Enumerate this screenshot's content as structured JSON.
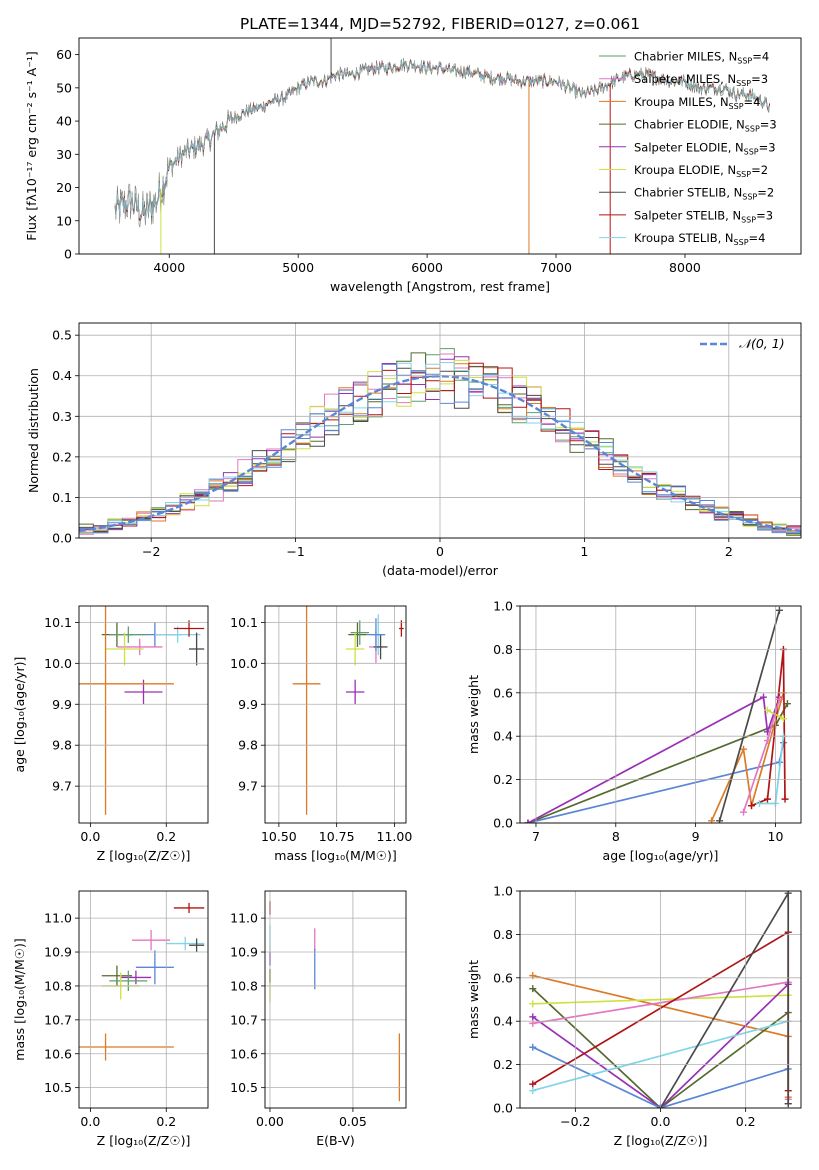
{
  "title": "PLATE=1344, MJD=52792, FIBERID=0127, z=0.061",
  "colors": {
    "chabrier_miles": "#5f9e6e",
    "salpeter_miles": "#e377c2",
    "kroupa_miles": "#dd7a25",
    "chabrier_elodie": "#556b2f",
    "salpeter_elodie": "#9a30b5",
    "kroupa_elodie": "#d0e040",
    "chabrier_stelib": "#4a4a4a",
    "salpeter_stelib": "#b01515",
    "kroupa_stelib": "#7fd6e6",
    "blue_series": "#5b86d6",
    "grid": "#b0b0b0"
  },
  "chart_data": [
    {
      "id": "spectrum",
      "type": "line",
      "xlabel": "wavelength [Angstrom, rest frame]",
      "ylabel": "Flux [f$_\\lambda$10$^{-17}$ erg cm$^{-2}$ s$^{-1}$ A$^{-1}$]",
      "ylabel_display": "Flux [fλ10⁻¹⁷ erg cm⁻² s⁻¹ A⁻¹]",
      "xlim": [
        3300,
        8900
      ],
      "ylim": [
        0,
        65
      ],
      "xticks": [
        4000,
        5000,
        6000,
        7000,
        8000
      ],
      "yticks": [
        0,
        10,
        20,
        30,
        40,
        50,
        60
      ],
      "grid": false,
      "legend_position": "top-right",
      "legend": [
        {
          "label": "Chabrier MILES, N",
          "sub": "SSP",
          "suffix": "=4",
          "color_key": "chabrier_miles"
        },
        {
          "label": "Salpeter MILES, N",
          "sub": "SSP",
          "suffix": "=3",
          "color_key": "salpeter_miles"
        },
        {
          "label": "Kroupa MILES, N",
          "sub": "SSP",
          "suffix": "=4",
          "color_key": "kroupa_miles"
        },
        {
          "label": "Chabrier ELODIE, N",
          "sub": "SSP",
          "suffix": "=3",
          "color_key": "chabrier_elodie"
        },
        {
          "label": "Salpeter ELODIE, N",
          "sub": "SSP",
          "suffix": "=3",
          "color_key": "salpeter_elodie"
        },
        {
          "label": "Kroupa ELODIE, N",
          "sub": "SSP",
          "suffix": "=2",
          "color_key": "kroupa_elodie"
        },
        {
          "label": "Chabrier STELIB, N",
          "sub": "SSP",
          "suffix": "=2",
          "color_key": "chabrier_stelib"
        },
        {
          "label": "Salpeter STELIB, N",
          "sub": "SSP",
          "suffix": "=3",
          "color_key": "salpeter_stelib"
        },
        {
          "label": "Kroupa STELIB, N",
          "sub": "SSP",
          "suffix": "=4",
          "color_key": "kroupa_stelib"
        }
      ],
      "continuum": [
        [
          3580,
          13
        ],
        [
          3700,
          16
        ],
        [
          3800,
          12
        ],
        [
          3900,
          16
        ],
        [
          3960,
          22
        ],
        [
          4000,
          26
        ],
        [
          4100,
          30
        ],
        [
          4200,
          32
        ],
        [
          4300,
          34
        ],
        [
          4400,
          38
        ],
        [
          4500,
          41
        ],
        [
          4600,
          43
        ],
        [
          4700,
          44
        ],
        [
          4800,
          46
        ],
        [
          4900,
          47
        ],
        [
          5000,
          50
        ],
        [
          5100,
          52
        ],
        [
          5200,
          52
        ],
        [
          5300,
          54
        ],
        [
          5400,
          54
        ],
        [
          5500,
          55
        ],
        [
          5600,
          56
        ],
        [
          5700,
          56
        ],
        [
          5800,
          57
        ],
        [
          5900,
          57
        ],
        [
          6000,
          56
        ],
        [
          6100,
          56
        ],
        [
          6200,
          55
        ],
        [
          6300,
          55
        ],
        [
          6400,
          54
        ],
        [
          6500,
          53
        ],
        [
          6600,
          53
        ],
        [
          6700,
          52
        ],
        [
          6800,
          52
        ],
        [
          6900,
          52
        ],
        [
          7000,
          52
        ],
        [
          7100,
          50
        ],
        [
          7200,
          48
        ],
        [
          7300,
          49
        ],
        [
          7400,
          51
        ],
        [
          7500,
          53
        ],
        [
          7600,
          54
        ],
        [
          7700,
          54
        ],
        [
          7800,
          53
        ],
        [
          7900,
          52
        ],
        [
          8000,
          52
        ],
        [
          8100,
          50
        ],
        [
          8200,
          50
        ],
        [
          8300,
          50
        ],
        [
          8400,
          48
        ],
        [
          8500,
          48
        ],
        [
          8600,
          46
        ],
        [
          8660,
          44
        ]
      ],
      "spikes": [
        {
          "x": 3935,
          "y": 0,
          "color_key": "kroupa_elodie"
        },
        {
          "x": 4350,
          "y": 0,
          "color_key": "chabrier_stelib"
        },
        {
          "x": 5255,
          "y": 65,
          "color_key": "chabrier_stelib"
        },
        {
          "x": 6790,
          "y": 0,
          "color_key": "kroupa_miles"
        },
        {
          "x": 7420,
          "y": 0,
          "color_key": "salpeter_stelib"
        }
      ]
    },
    {
      "id": "residuals",
      "type": "histogram",
      "xlabel": "(data-model)/error",
      "ylabel": "Normed distribution",
      "xlim": [
        -2.5,
        2.5
      ],
      "ylim": [
        0,
        0.53
      ],
      "xticks": [
        -2,
        -1,
        0,
        1,
        2
      ],
      "xtick_labels": [
        "−2",
        "−1",
        "0",
        "1",
        "2"
      ],
      "yticks": [
        0.0,
        0.1,
        0.2,
        0.3,
        0.4,
        0.5
      ],
      "grid": true,
      "legend_position": "top-right",
      "legend_label": "𝒩(0, 1)",
      "bin_width": 0.1,
      "reference_curve": "gaussian mean 0 sigma 1"
    },
    {
      "id": "age_vs_Z",
      "type": "scatter",
      "xlabel": "Z [log₁₀(Z/Z☉)]",
      "ylabel": "age  [log₁₀(age/yr)]",
      "xlim": [
        -0.03,
        0.31
      ],
      "ylim": [
        9.61,
        10.14
      ],
      "xticks": [
        0.0,
        0.2
      ],
      "yticks": [
        9.7,
        9.8,
        9.9,
        10.0,
        10.1
      ],
      "grid": true,
      "points": [
        {
          "x": 0.17,
          "y": 10.07,
          "xerr": 0.07,
          "yerr": 0.03,
          "color_key": "blue_series"
        },
        {
          "x": 0.07,
          "y": 10.07,
          "xerr": 0.04,
          "yerr": 0.03,
          "color_key": "chabrier_elodie"
        },
        {
          "x": 0.1,
          "y": 10.07,
          "xerr": 0.05,
          "yerr": 0.02,
          "color_key": "chabrier_miles"
        },
        {
          "x": 0.13,
          "y": 10.04,
          "xerr": 0.06,
          "yerr": 0.02,
          "color_key": "salpeter_miles"
        },
        {
          "x": 0.09,
          "y": 10.035,
          "xerr": 0.05,
          "yerr": 0.04,
          "color_key": "kroupa_elodie"
        },
        {
          "x": 0.23,
          "y": 10.07,
          "xerr": 0.06,
          "yerr": 0.02,
          "color_key": "kroupa_stelib"
        },
        {
          "x": 0.26,
          "y": 10.085,
          "xerr": 0.04,
          "yerr": 0.02,
          "color_key": "salpeter_stelib"
        },
        {
          "x": 0.28,
          "y": 10.035,
          "xerr": 0.02,
          "yerr": 0.04,
          "color_key": "chabrier_stelib"
        },
        {
          "x": 0.14,
          "y": 9.93,
          "xerr": 0.05,
          "yerr": 0.03,
          "color_key": "salpeter_elodie"
        },
        {
          "x": 0.04,
          "y": 9.95,
          "xerr": 0.18,
          "yerr": 0.32,
          "color_key": "kroupa_miles"
        }
      ]
    },
    {
      "id": "age_vs_mass",
      "type": "scatter",
      "xlabel": "mass [log₁₀(M/M☉)]",
      "ylabel": "",
      "xlim": [
        10.44,
        11.05
      ],
      "ylim": [
        9.61,
        10.14
      ],
      "xticks": [
        10.5,
        10.75,
        11.0
      ],
      "yticks": [
        9.7,
        9.8,
        9.9,
        10.0,
        10.1
      ],
      "grid": true,
      "points": [
        {
          "x": 10.93,
          "y": 10.07,
          "xerr": 0.03,
          "yerr": 0.05,
          "color_key": "kroupa_stelib"
        },
        {
          "x": 10.84,
          "y": 10.07,
          "xerr": 0.04,
          "yerr": 0.03,
          "color_key": "chabrier_elodie"
        },
        {
          "x": 10.85,
          "y": 10.075,
          "xerr": 0.04,
          "yerr": 0.03,
          "color_key": "chabrier_miles"
        },
        {
          "x": 10.92,
          "y": 10.04,
          "xerr": 0.03,
          "yerr": 0.04,
          "color_key": "salpeter_miles"
        },
        {
          "x": 10.83,
          "y": 10.035,
          "xerr": 0.04,
          "yerr": 0.04,
          "color_key": "kroupa_elodie"
        },
        {
          "x": 10.94,
          "y": 10.04,
          "xerr": 0.03,
          "yerr": 0.03,
          "color_key": "chabrier_stelib"
        },
        {
          "x": 11.03,
          "y": 10.085,
          "xerr": 0.01,
          "yerr": 0.02,
          "color_key": "salpeter_stelib"
        },
        {
          "x": 10.83,
          "y": 9.93,
          "xerr": 0.04,
          "yerr": 0.03,
          "color_key": "salpeter_elodie"
        },
        {
          "x": 10.92,
          "y": 10.07,
          "xerr": 0.04,
          "yerr": 0.04,
          "color_key": "blue_series"
        },
        {
          "x": 10.62,
          "y": 9.95,
          "xerr": 0.06,
          "yerr": 0.32,
          "color_key": "kroupa_miles"
        }
      ]
    },
    {
      "id": "massweight_vs_age",
      "type": "line",
      "xlabel": "age  [log₁₀(age/yr)]",
      "ylabel": "mass weight",
      "xlim": [
        6.8,
        10.32
      ],
      "ylim": [
        0,
        1
      ],
      "xticks": [
        7,
        8,
        9,
        10
      ],
      "yticks": [
        0.0,
        0.2,
        0.4,
        0.6,
        0.8,
        1.0
      ],
      "grid": true,
      "series": [
        {
          "color_key": "blue_series",
          "x": [
            6.9,
            10.05,
            10.1
          ],
          "y": [
            0.0,
            0.28,
            0.37
          ]
        },
        {
          "color_key": "chabrier_elodie",
          "x": [
            6.9,
            10.0,
            10.15
          ],
          "y": [
            0.0,
            0.45,
            0.55
          ]
        },
        {
          "color_key": "salpeter_elodie",
          "x": [
            6.9,
            9.85,
            9.9,
            10.05
          ],
          "y": [
            0.0,
            0.58,
            0.42,
            0.58
          ]
        },
        {
          "color_key": "kroupa_miles",
          "x": [
            9.2,
            9.6,
            9.7,
            10.1
          ],
          "y": [
            0.01,
            0.34,
            0.08,
            0.6
          ]
        },
        {
          "color_key": "chabrier_stelib",
          "x": [
            9.3,
            10.05
          ],
          "y": [
            0.01,
            0.98
          ]
        },
        {
          "color_key": "salpeter_stelib",
          "x": [
            9.7,
            9.9,
            10.1,
            10.12
          ],
          "y": [
            0.08,
            0.11,
            0.8,
            0.11
          ]
        },
        {
          "color_key": "kroupa_elodie",
          "x": [
            9.9,
            10.1
          ],
          "y": [
            0.52,
            0.48
          ]
        },
        {
          "color_key": "kroupa_stelib",
          "x": [
            9.8,
            10.0,
            10.1
          ],
          "y": [
            0.09,
            0.09,
            0.4
          ]
        },
        {
          "color_key": "salpeter_miles",
          "x": [
            9.6,
            9.9,
            10.05
          ],
          "y": [
            0.05,
            0.38,
            0.57
          ]
        }
      ]
    },
    {
      "id": "mass_vs_Z",
      "type": "scatter",
      "xlabel": "Z [log₁₀(Z/Z☉)]",
      "ylabel": "mass [log₁₀(M/M☉)]",
      "xlim": [
        -0.03,
        0.31
      ],
      "ylim": [
        10.44,
        11.08
      ],
      "xticks": [
        0.0,
        0.2
      ],
      "yticks": [
        10.5,
        10.6,
        10.7,
        10.8,
        10.9,
        11.0
      ],
      "grid": true,
      "points": [
        {
          "x": 0.26,
          "y": 11.03,
          "xerr": 0.04,
          "yerr": 0.015,
          "color_key": "salpeter_stelib"
        },
        {
          "x": 0.16,
          "y": 10.935,
          "xerr": 0.05,
          "yerr": 0.03,
          "color_key": "salpeter_miles"
        },
        {
          "x": 0.25,
          "y": 10.925,
          "xerr": 0.05,
          "yerr": 0.02,
          "color_key": "kroupa_stelib"
        },
        {
          "x": 0.28,
          "y": 10.92,
          "xerr": 0.02,
          "yerr": 0.02,
          "color_key": "chabrier_stelib"
        },
        {
          "x": 0.17,
          "y": 10.855,
          "xerr": 0.05,
          "yerr": 0.05,
          "color_key": "blue_series"
        },
        {
          "x": 0.07,
          "y": 10.83,
          "xerr": 0.04,
          "yerr": 0.03,
          "color_key": "chabrier_elodie"
        },
        {
          "x": 0.12,
          "y": 10.825,
          "xerr": 0.04,
          "yerr": 0.02,
          "color_key": "salpeter_elodie"
        },
        {
          "x": 0.1,
          "y": 10.815,
          "xerr": 0.05,
          "yerr": 0.03,
          "color_key": "chabrier_miles"
        },
        {
          "x": 0.08,
          "y": 10.8,
          "xerr": 0.05,
          "yerr": 0.04,
          "color_key": "kroupa_elodie"
        },
        {
          "x": 0.04,
          "y": 10.62,
          "xerr": 0.18,
          "yerr": 0.04,
          "color_key": "kroupa_miles"
        }
      ]
    },
    {
      "id": "mass_vs_ebv",
      "type": "scatter",
      "xlabel": "E(B-V)",
      "ylabel": "",
      "xlim": [
        -0.003,
        0.082
      ],
      "ylim": [
        10.44,
        11.08
      ],
      "xticks": [
        0.0,
        0.05
      ],
      "xtick_labels": [
        "0.00",
        "0.05"
      ],
      "yticks": [
        10.5,
        10.6,
        10.7,
        10.8,
        10.9,
        11.0
      ],
      "grid": true,
      "points": [
        {
          "x": 0.0,
          "y": 11.03,
          "xerr": 0,
          "yerr": 0.02,
          "color_key": "salpeter_stelib"
        },
        {
          "x": 0.0,
          "y": 10.92,
          "xerr": 0,
          "yerr": 0.06,
          "color_key": "kroupa_stelib"
        },
        {
          "x": 0.0,
          "y": 10.88,
          "xerr": 0,
          "yerr": 0.02,
          "color_key": "salpeter_elodie"
        },
        {
          "x": 0.0,
          "y": 10.8,
          "xerr": 0,
          "yerr": 0.05,
          "color_key": "kroupa_elodie"
        },
        {
          "x": 0.0,
          "y": 10.83,
          "xerr": 0,
          "yerr": 0.02,
          "color_key": "chabrier_elodie"
        },
        {
          "x": 0.027,
          "y": 10.935,
          "xerr": 0,
          "yerr": 0.035,
          "color_key": "salpeter_miles"
        },
        {
          "x": 0.027,
          "y": 10.85,
          "xerr": 0,
          "yerr": 0.06,
          "color_key": "blue_series"
        },
        {
          "x": 0.078,
          "y": 10.56,
          "xerr": 0,
          "yerr": 0.1,
          "color_key": "kroupa_miles"
        }
      ]
    },
    {
      "id": "massweight_vs_Z",
      "type": "line",
      "xlabel": "Z [log₁₀(Z/Z☉)]",
      "ylabel": "mass weight",
      "xlim": [
        -0.33,
        0.33
      ],
      "ylim": [
        0,
        1
      ],
      "xticks": [
        -0.2,
        0.0,
        0.2
      ],
      "xtick_labels": [
        "−0.2",
        "0.0",
        "0.2"
      ],
      "yticks": [
        0.0,
        0.2,
        0.4,
        0.6,
        0.8,
        1.0
      ],
      "grid": true,
      "series": [
        {
          "color_key": "kroupa_miles",
          "x": [
            -0.3,
            0.3,
            0.3,
            0.3
          ],
          "y": [
            0.61,
            0.33,
            0.05,
            0.02
          ]
        },
        {
          "color_key": "chabrier_elodie",
          "x": [
            -0.3,
            0.0,
            0.3
          ],
          "y": [
            0.55,
            0.0,
            0.44
          ]
        },
        {
          "color_key": "kroupa_elodie",
          "x": [
            -0.3,
            0.3
          ],
          "y": [
            0.48,
            0.52
          ]
        },
        {
          "color_key": "salpeter_elodie",
          "x": [
            -0.3,
            0.0,
            0.3
          ],
          "y": [
            0.42,
            0.0,
            0.57
          ]
        },
        {
          "color_key": "salpeter_miles",
          "x": [
            -0.3,
            0.3,
            0.3
          ],
          "y": [
            0.39,
            0.58,
            0.04
          ]
        },
        {
          "color_key": "blue_series",
          "x": [
            -0.3,
            0.0,
            0.3
          ],
          "y": [
            0.28,
            0.0,
            0.18
          ]
        },
        {
          "color_key": "salpeter_stelib",
          "x": [
            -0.3,
            0.3,
            0.3
          ],
          "y": [
            0.11,
            0.81,
            0.08
          ]
        },
        {
          "color_key": "kroupa_stelib",
          "x": [
            -0.3,
            0.3
          ],
          "y": [
            0.08,
            0.4
          ]
        },
        {
          "color_key": "chabrier_stelib",
          "x": [
            0.0,
            0.3,
            0.3
          ],
          "y": [
            0.0,
            0.99,
            0.02
          ]
        }
      ]
    }
  ]
}
